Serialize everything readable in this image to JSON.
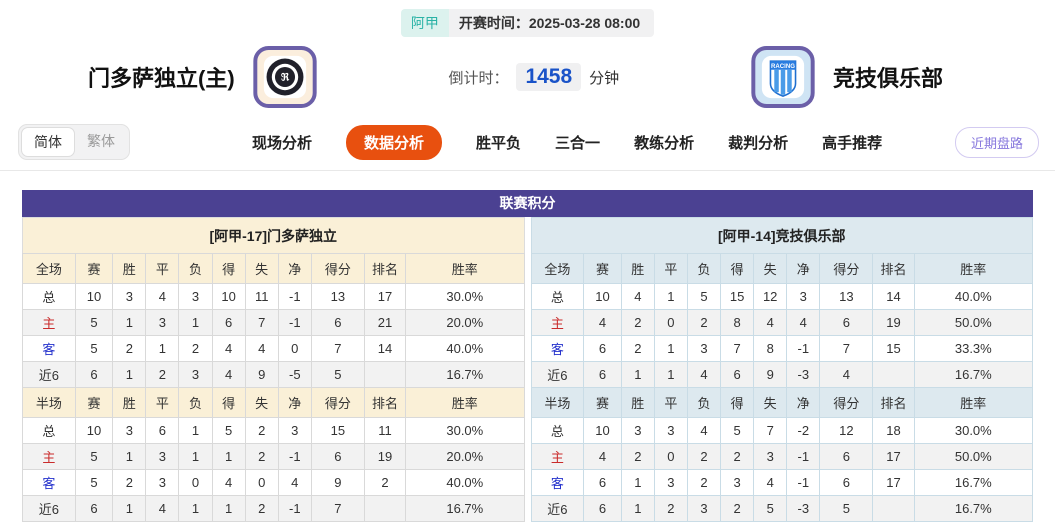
{
  "header": {
    "league_badge": "阿甲",
    "kickoff_label": "开赛时间：",
    "kickoff_time": "2025-03-28 08:00",
    "home_team_name": "门多萨独立(主)",
    "away_team_name": "竞技俱乐部",
    "away_logo_text": "RACING",
    "countdown_label": "倒计时：",
    "countdown_minutes": "1458",
    "countdown_unit": "分钟"
  },
  "nav": {
    "lang_options": [
      "简体",
      "繁体"
    ],
    "active_lang": "简体",
    "tabs": [
      "现场分析",
      "数据分析",
      "胜平负",
      "三合一",
      "教练分析",
      "裁判分析",
      "高手推荐"
    ],
    "active_tab": "数据分析",
    "recent_button_label": "近期盘路"
  },
  "league_table": {
    "title": "联赛积分",
    "full_columns": [
      "全场",
      "赛",
      "胜",
      "平",
      "负",
      "得",
      "失",
      "净",
      "得分",
      "排名",
      "胜率"
    ],
    "half_columns": [
      "半场",
      "赛",
      "胜",
      "平",
      "负",
      "得",
      "失",
      "净",
      "得分",
      "排名",
      "胜率"
    ],
    "home": {
      "header": "[阿甲-17]门多萨独立",
      "full_rows": [
        [
          "总",
          "10",
          "3",
          "4",
          "3",
          "10",
          "11",
          "-1",
          "13",
          "17",
          "30.0%"
        ],
        [
          "主",
          "5",
          "1",
          "3",
          "1",
          "6",
          "7",
          "-1",
          "6",
          "21",
          "20.0%"
        ],
        [
          "客",
          "5",
          "2",
          "1",
          "2",
          "4",
          "4",
          "0",
          "7",
          "14",
          "40.0%"
        ],
        [
          "近6",
          "6",
          "1",
          "2",
          "3",
          "4",
          "9",
          "-5",
          "5",
          "",
          "16.7%"
        ]
      ],
      "half_rows": [
        [
          "总",
          "10",
          "3",
          "6",
          "1",
          "5",
          "2",
          "3",
          "15",
          "11",
          "30.0%"
        ],
        [
          "主",
          "5",
          "1",
          "3",
          "1",
          "1",
          "2",
          "-1",
          "6",
          "19",
          "20.0%"
        ],
        [
          "客",
          "5",
          "2",
          "3",
          "0",
          "4",
          "0",
          "4",
          "9",
          "2",
          "40.0%"
        ],
        [
          "近6",
          "6",
          "1",
          "4",
          "1",
          "1",
          "2",
          "-1",
          "7",
          "",
          "16.7%"
        ]
      ]
    },
    "away": {
      "header": "[阿甲-14]竞技俱乐部",
      "full_rows": [
        [
          "总",
          "10",
          "4",
          "1",
          "5",
          "15",
          "12",
          "3",
          "13",
          "14",
          "40.0%"
        ],
        [
          "主",
          "4",
          "2",
          "0",
          "2",
          "8",
          "4",
          "4",
          "6",
          "19",
          "50.0%"
        ],
        [
          "客",
          "6",
          "2",
          "1",
          "3",
          "7",
          "8",
          "-1",
          "7",
          "15",
          "33.3%"
        ],
        [
          "近6",
          "6",
          "1",
          "1",
          "4",
          "6",
          "9",
          "-3",
          "4",
          "",
          "16.7%"
        ]
      ],
      "half_rows": [
        [
          "总",
          "10",
          "3",
          "3",
          "4",
          "5",
          "7",
          "-2",
          "12",
          "18",
          "30.0%"
        ],
        [
          "主",
          "4",
          "2",
          "0",
          "2",
          "2",
          "3",
          "-1",
          "6",
          "17",
          "50.0%"
        ],
        [
          "客",
          "6",
          "1",
          "3",
          "2",
          "3",
          "4",
          "-1",
          "6",
          "17",
          "16.7%"
        ],
        [
          "近6",
          "6",
          "1",
          "2",
          "3",
          "2",
          "5",
          "-3",
          "5",
          "",
          "16.7%"
        ]
      ]
    }
  },
  "colors": {
    "brand_purple": "#4b4192",
    "active_tab_orange": "#e8500f",
    "league_badge_teal": "#2ab3a6",
    "countdown_blue": "#1a53c8",
    "home_panel_cream": "#faf0d7",
    "away_panel_blue": "#dde9ef",
    "home_row_red": "#c92b2b",
    "away_row_blue": "#2330cc",
    "recent_button_purple": "#8677dd"
  }
}
